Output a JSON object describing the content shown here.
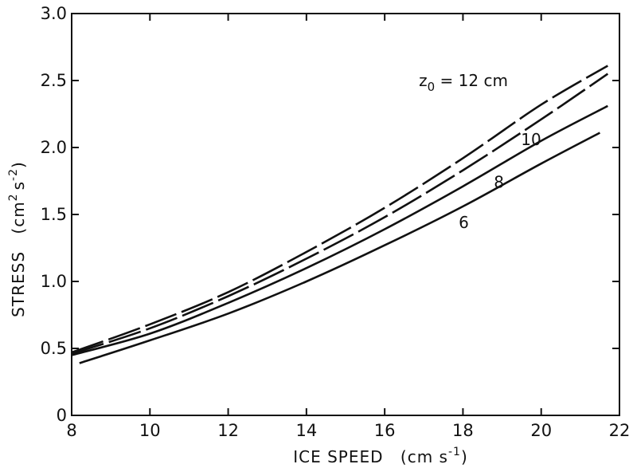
{
  "chart_data": {
    "type": "line",
    "title": "",
    "xlabel": "ICE SPEED",
    "xlabel_unit": "cm s",
    "xlabel_unit_exp": "-1",
    "ylabel": "STRESS",
    "ylabel_unit_base": "cm",
    "ylabel_unit_exp1": "2",
    "ylabel_unit_mid": "s",
    "ylabel_unit_exp2": "-2",
    "xlim": [
      8,
      22
    ],
    "ylim": [
      0,
      3.0
    ],
    "xticks": [
      "8",
      "10",
      "12",
      "14",
      "16",
      "18",
      "20",
      "22"
    ],
    "yticks": [
      "0",
      "0.5",
      "1.0",
      "1.5",
      "2.0",
      "2.5",
      "3.0"
    ],
    "grid": false,
    "series": [
      {
        "name": "z",
        "label": "z",
        "label_sub": "0",
        "label_rest": " = 12 cm",
        "style": "dashed",
        "x": [
          8.0,
          10.0,
          12.0,
          14.0,
          16.0,
          18.0,
          20.0,
          21.7
        ],
        "y": [
          0.47,
          0.68,
          0.92,
          1.22,
          1.55,
          1.92,
          2.32,
          2.61
        ]
      },
      {
        "name": "10",
        "label": "10",
        "style": "dashed",
        "x": [
          8.0,
          10.0,
          12.0,
          14.0,
          16.0,
          18.0,
          20.0,
          21.7
        ],
        "y": [
          0.46,
          0.65,
          0.89,
          1.17,
          1.48,
          1.83,
          2.21,
          2.55
        ]
      },
      {
        "name": "8",
        "label": "8",
        "style": "solid-broken",
        "x": [
          8.0,
          10.0,
          12.0,
          14.0,
          16.0,
          18.0,
          20.0,
          21.7
        ],
        "y": [
          0.45,
          0.61,
          0.84,
          1.1,
          1.39,
          1.71,
          2.05,
          2.31
        ]
      },
      {
        "name": "6",
        "label": "6",
        "style": "solid-broken",
        "x": [
          8.2,
          10.0,
          12.0,
          14.0,
          16.0,
          18.0,
          20.0,
          21.5
        ],
        "y": [
          0.39,
          0.56,
          0.76,
          1.0,
          1.27,
          1.56,
          1.88,
          2.11
        ]
      }
    ]
  }
}
